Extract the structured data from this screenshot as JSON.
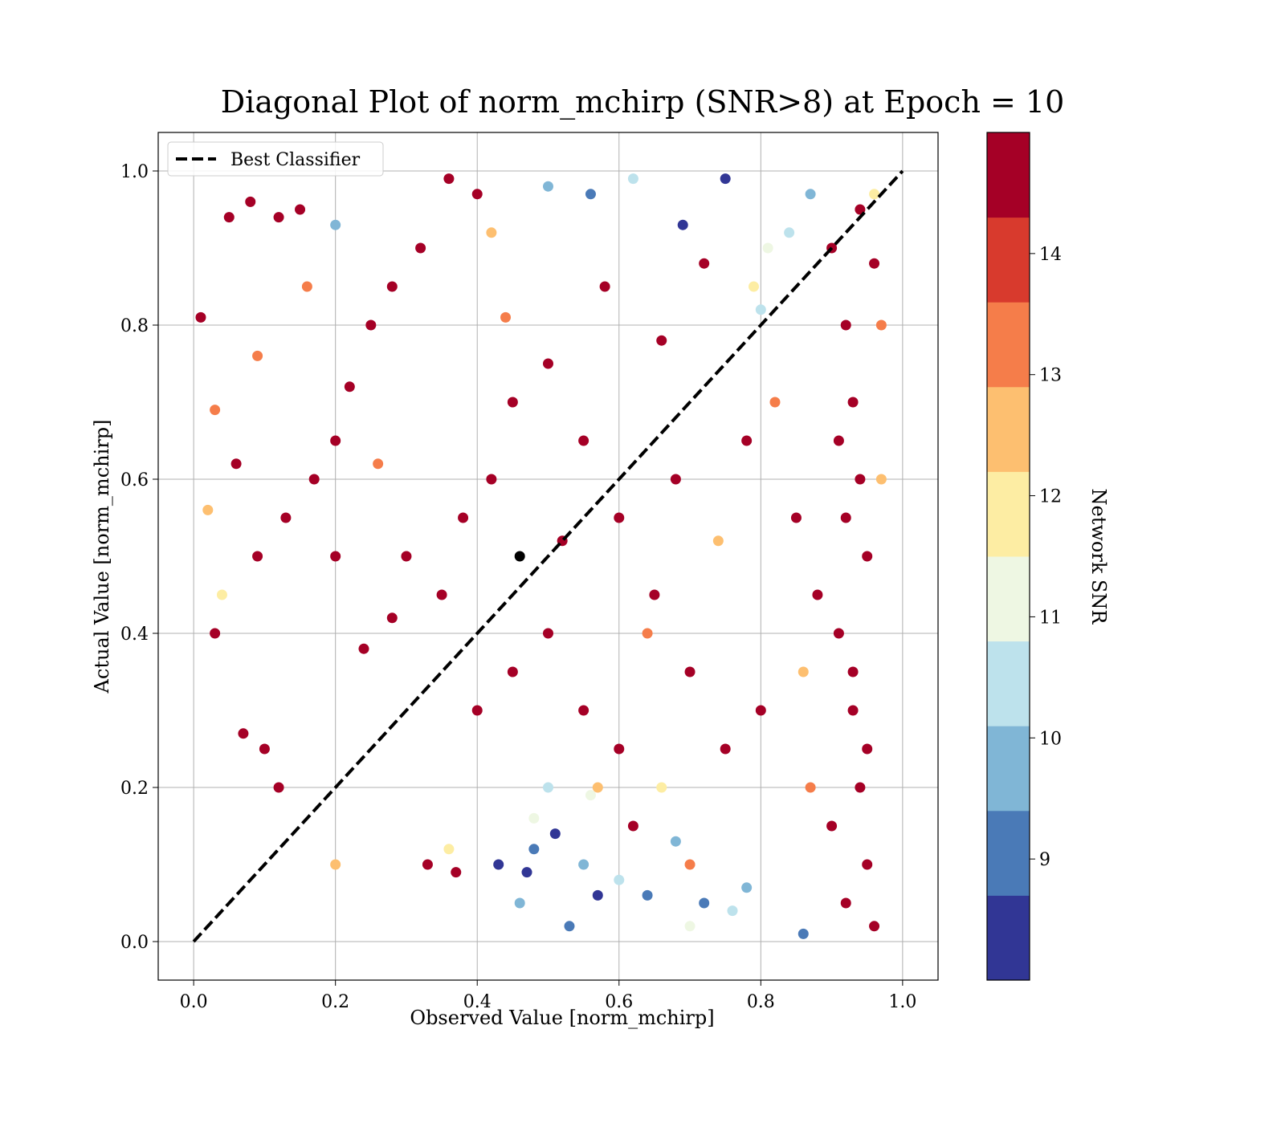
{
  "chart_data": {
    "type": "scatter",
    "title": "Diagonal Plot of norm_mchirp (SNR>8) at Epoch = 10",
    "xlabel": "Observed Value [norm_mchirp]",
    "ylabel": "Actual Value [norm_mchirp]",
    "xlim": [
      -0.05,
      1.05
    ],
    "ylim": [
      -0.05,
      1.05
    ],
    "xticks": [
      {
        "value": 0,
        "label": "0.0"
      },
      0.2,
      0.4,
      0.6,
      0.8,
      {
        "value": 1,
        "label": "1.0"
      }
    ],
    "yticks": [
      {
        "value": 0,
        "label": "0.0"
      },
      0.2,
      0.4,
      0.6,
      0.8,
      {
        "value": 1,
        "label": "1.0"
      }
    ],
    "grid": true,
    "legend": "upper left",
    "points": {
      "x": [
        0.47,
        0.51,
        0.57,
        0.75,
        0.69,
        0.43,
        0.48,
        0.53,
        0.72,
        0.64,
        0.86,
        0.56,
        0.46,
        0.55,
        0.68,
        0.78,
        0.2,
        0.5,
        0.87,
        0.6,
        0.76,
        0.84,
        0.5,
        0.8,
        0.62,
        0.7,
        0.56,
        0.81,
        0.48,
        0.04,
        0.36,
        0.79,
        0.66,
        0.96,
        0.02,
        0.2,
        0.42,
        0.74,
        0.86,
        0.97,
        0.57,
        0.03,
        0.09,
        0.16,
        0.26,
        0.44,
        0.64,
        0.82,
        0.87,
        0.97,
        0.7,
        0.01,
        0.05,
        0.08,
        0.12,
        0.15,
        0.03,
        0.07,
        0.1,
        0.12,
        0.06,
        0.09,
        0.13,
        0.17,
        0.2,
        0.22,
        0.25,
        0.28,
        0.32,
        0.36,
        0.4,
        0.3,
        0.35,
        0.38,
        0.42,
        0.45,
        0.5,
        0.55,
        0.6,
        0.65,
        0.7,
        0.75,
        0.8,
        0.55,
        0.6,
        0.5,
        0.45,
        0.4,
        0.33,
        0.37,
        0.28,
        0.24,
        0.2,
        0.66,
        0.72,
        0.78,
        0.85,
        0.88,
        0.9,
        0.92,
        0.93,
        0.94,
        0.95,
        0.91,
        0.93,
        0.94,
        0.95,
        0.92,
        0.96,
        0.9,
        0.94,
        0.96,
        0.91,
        0.93,
        0.95,
        0.92,
        0.68,
        0.58,
        0.62,
        0.52,
        0.46
      ],
      "y": [
        0.09,
        0.14,
        0.06,
        0.99,
        0.93,
        0.1,
        0.12,
        0.02,
        0.05,
        0.06,
        0.01,
        0.97,
        0.05,
        0.1,
        0.13,
        0.07,
        0.93,
        0.98,
        0.97,
        0.08,
        0.04,
        0.92,
        0.2,
        0.82,
        0.99,
        0.02,
        0.19,
        0.9,
        0.16,
        0.45,
        0.12,
        0.85,
        0.2,
        0.97,
        0.56,
        0.1,
        0.92,
        0.52,
        0.35,
        0.6,
        0.2,
        0.69,
        0.76,
        0.85,
        0.62,
        0.81,
        0.4,
        0.7,
        0.2,
        0.8,
        0.1,
        0.81,
        0.94,
        0.96,
        0.94,
        0.95,
        0.4,
        0.27,
        0.25,
        0.2,
        0.62,
        0.5,
        0.55,
        0.6,
        0.65,
        0.72,
        0.8,
        0.85,
        0.9,
        0.99,
        0.97,
        0.5,
        0.45,
        0.55,
        0.6,
        0.7,
        0.75,
        0.65,
        0.55,
        0.45,
        0.35,
        0.25,
        0.3,
        0.3,
        0.25,
        0.4,
        0.35,
        0.3,
        0.1,
        0.09,
        0.42,
        0.38,
        0.5,
        0.78,
        0.88,
        0.65,
        0.55,
        0.45,
        0.9,
        0.8,
        0.7,
        0.6,
        0.5,
        0.4,
        0.3,
        0.2,
        0.1,
        0.05,
        0.02,
        0.15,
        0.95,
        0.88,
        0.65,
        0.35,
        0.25,
        0.55,
        0.6,
        0.85,
        0.15,
        0.52,
        0.5
      ],
      "c": [
        8.3,
        8.3,
        8.3,
        8.3,
        8.3,
        8.3,
        9.0,
        9.0,
        9.0,
        9.0,
        9.0,
        9.0,
        9.7,
        9.7,
        9.7,
        9.7,
        9.7,
        9.7,
        9.7,
        10.4,
        10.4,
        10.4,
        10.4,
        10.4,
        10.4,
        11.1,
        11.1,
        11.1,
        11.1,
        11.8,
        11.8,
        11.8,
        11.8,
        11.8,
        12.5,
        12.5,
        12.5,
        12.5,
        12.5,
        12.5,
        12.5,
        13.2,
        13.2,
        13.2,
        13.2,
        13.2,
        13.2,
        13.2,
        13.2,
        13.2,
        13.2,
        14.5,
        14.5,
        14.5,
        14.5,
        14.5,
        14.5,
        14.5,
        14.5,
        14.5,
        14.5,
        14.5,
        14.5,
        14.5,
        14.5,
        14.5,
        14.5,
        14.5,
        14.5,
        14.5,
        14.5,
        14.5,
        14.5,
        14.5,
        14.5,
        14.5,
        14.5,
        14.5,
        14.5,
        14.5,
        14.5,
        14.5,
        14.5,
        14.5,
        14.5,
        14.5,
        14.5,
        14.5,
        14.5,
        14.5,
        14.5,
        14.5,
        14.5,
        14.5,
        14.5,
        14.5,
        14.5,
        14.5,
        14.5,
        14.5,
        14.5,
        14.5,
        14.5,
        14.5,
        14.5,
        14.5,
        14.5,
        14.5,
        14.5,
        14.5,
        14.5,
        14.5,
        14.5,
        14.5,
        14.5,
        14.5,
        14.5,
        14.5,
        14.5,
        14.5
      ]
    },
    "lines": [
      {
        "name": "Best Classifier",
        "x": [
          0,
          1
        ],
        "y": [
          0,
          1
        ],
        "color": "#000000",
        "dashed": true
      }
    ],
    "colorbar": {
      "label": "Network SNR",
      "lim": [
        8,
        15
      ],
      "ticks": [
        9,
        10,
        11,
        12,
        13,
        14
      ],
      "colors": [
        "#313695",
        "#4a7ab7",
        "#80b6d6",
        "#bde2ec",
        "#eef7e3",
        "#fdeda3",
        "#fdbf70",
        "#f57d4a",
        "#d83a2d",
        "#a50026"
      ]
    }
  }
}
